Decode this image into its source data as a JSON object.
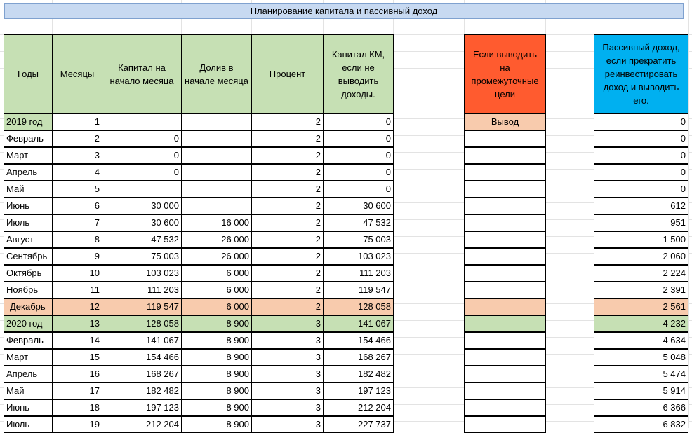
{
  "title": "Планирование капитала и пассивный доход",
  "headers": {
    "years": "Годы",
    "months": "Месяцы",
    "capital_start": "Капитал на начало месяца",
    "topup": "Долив в начале месяца",
    "percent": "Процент",
    "capital_km": "Капитал КМ, если не выводить доходы.",
    "withdraw": "Если выводить на промежуточные цели",
    "passive": "Пассивный доход, если прекратить реинвестировать доход и выводить его."
  },
  "withdraw_label": "Вывод",
  "colors": {
    "header_green": "#c6e0b4",
    "header_red": "#ff5b2f",
    "header_blue": "#00b0f0",
    "highlight_orange": "#f8cbad",
    "title_bg": "#c7d9f1"
  },
  "rows": [
    {
      "year": "2019 год",
      "month": "1",
      "cap": "",
      "top": "",
      "pct": "2",
      "km": "0",
      "inc": "0",
      "style": "year"
    },
    {
      "year": "Февраль",
      "month": "2",
      "cap": "0",
      "top": "",
      "pct": "2",
      "km": "0",
      "inc": "0",
      "style": ""
    },
    {
      "year": "Март",
      "month": "3",
      "cap": "0",
      "top": "",
      "pct": "2",
      "km": "0",
      "inc": "0",
      "style": ""
    },
    {
      "year": "Апрель",
      "month": "4",
      "cap": "0",
      "top": "",
      "pct": "2",
      "km": "0",
      "inc": "0",
      "style": ""
    },
    {
      "year": "Май",
      "month": "5",
      "cap": "",
      "top": "",
      "pct": "2",
      "km": "0",
      "inc": "0",
      "style": ""
    },
    {
      "year": "Июнь",
      "month": "6",
      "cap": "30 000",
      "top": "",
      "pct": "2",
      "km": "30 600",
      "inc": "612",
      "style": ""
    },
    {
      "year": "Июль",
      "month": "7",
      "cap": "30 600",
      "top": "16 000",
      "pct": "2",
      "km": "47 532",
      "inc": "951",
      "style": ""
    },
    {
      "year": "Август",
      "month": "8",
      "cap": "47 532",
      "top": "26 000",
      "pct": "2",
      "km": "75 003",
      "inc": "1 500",
      "style": ""
    },
    {
      "year": "Сентябрь",
      "month": "9",
      "cap": "75 003",
      "top": "26 000",
      "pct": "2",
      "km": "103 023",
      "inc": "2 060",
      "style": ""
    },
    {
      "year": "Октябрь",
      "month": "10",
      "cap": "103 023",
      "top": "6 000",
      "pct": "2",
      "km": "111 203",
      "inc": "2 224",
      "style": ""
    },
    {
      "year": "Ноябрь",
      "month": "11",
      "cap": "111 203",
      "top": "6 000",
      "pct": "2",
      "km": "119 547",
      "inc": "2 391",
      "style": ""
    },
    {
      "year": "Декабрь",
      "month": "12",
      "cap": "119 547",
      "top": "6 000",
      "pct": "2",
      "km": "128 058",
      "inc": "2 561",
      "style": "orange"
    },
    {
      "year": "2020 год",
      "month": "13",
      "cap": "128 058",
      "top": "8 900",
      "pct": "3",
      "km": "141 067",
      "inc": "4 232",
      "style": "green"
    },
    {
      "year": "Февраль",
      "month": "14",
      "cap": "141 067",
      "top": "8 900",
      "pct": "3",
      "km": "154 466",
      "inc": "4 634",
      "style": ""
    },
    {
      "year": "Март",
      "month": "15",
      "cap": "154 466",
      "top": "8 900",
      "pct": "3",
      "km": "168 267",
      "inc": "5 048",
      "style": ""
    },
    {
      "year": "Апрель",
      "month": "16",
      "cap": "168 267",
      "top": "8 900",
      "pct": "3",
      "km": "182 482",
      "inc": "5 474",
      "style": ""
    },
    {
      "year": "Май",
      "month": "17",
      "cap": "182 482",
      "top": "8 900",
      "pct": "3",
      "km": "197 123",
      "inc": "5 914",
      "style": ""
    },
    {
      "year": "Июнь",
      "month": "18",
      "cap": "197 123",
      "top": "8 900",
      "pct": "3",
      "km": "212 204",
      "inc": "6 366",
      "style": ""
    },
    {
      "year": "Июль",
      "month": "19",
      "cap": "212 204",
      "top": "8 900",
      "pct": "3",
      "km": "227 737",
      "inc": "6 832",
      "style": ""
    }
  ]
}
